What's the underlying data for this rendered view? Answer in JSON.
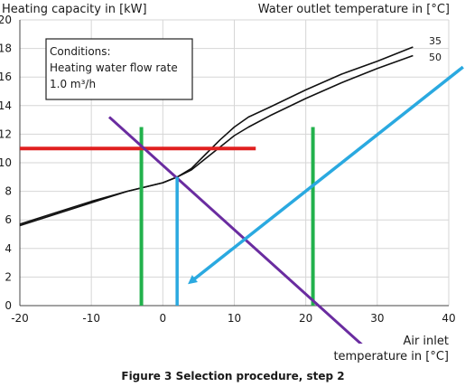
{
  "chart_data": {
    "type": "line",
    "ylabel": "Heating capacity in [kW]",
    "series_group_title": "Water outlet temperature in [°C]",
    "xlabel_line1": "Air inlet",
    "xlabel_line2": "temperature in [°C]",
    "caption": "Figure 3  Selection procedure, step 2",
    "xlim": [
      -20,
      40
    ],
    "ylim": [
      0,
      20
    ],
    "x_ticks": [
      "-20",
      "-10",
      "0",
      "10",
      "20",
      "30",
      "40"
    ],
    "y_ticks": [
      "0",
      "2",
      "4",
      "6",
      "8",
      "10",
      "12",
      "14",
      "16",
      "18",
      "20"
    ],
    "grid": true,
    "conditions": {
      "line1": "Conditions:",
      "line2": "Heating water flow rate",
      "line3": "1.0 m³/h"
    },
    "series": [
      {
        "name": "35",
        "x": [
          -20,
          -15,
          -10,
          -5,
          0,
          2,
          4,
          6,
          8,
          10,
          12,
          15,
          20,
          25,
          30,
          35
        ],
        "y": [
          5.6,
          6.4,
          7.2,
          8.0,
          8.6,
          9.0,
          9.6,
          10.6,
          11.6,
          12.5,
          13.2,
          13.9,
          15.1,
          16.2,
          17.1,
          18.1
        ]
      },
      {
        "name": "50",
        "x": [
          -20,
          -15,
          -10,
          -5,
          0,
          2,
          4,
          6,
          8,
          10,
          12,
          15,
          20,
          25,
          30,
          35
        ],
        "y": [
          5.7,
          6.5,
          7.3,
          8.0,
          8.6,
          9.0,
          9.5,
          10.3,
          11.1,
          11.9,
          12.5,
          13.3,
          14.5,
          15.6,
          16.6,
          17.5
        ]
      }
    ],
    "annotations": {
      "red_line": {
        "x": [
          -20,
          13
        ],
        "y": [
          11,
          11
        ],
        "color": "#e02020"
      },
      "green_lines": [
        {
          "x": [
            -3,
            -3
          ],
          "y": [
            0,
            12.5
          ],
          "color": "#22b14c"
        },
        {
          "x": [
            21,
            21
          ],
          "y": [
            0,
            12.5
          ],
          "color": "#22b14c"
        }
      ],
      "purple_line": {
        "x": [
          -7.5,
          28
        ],
        "y": [
          13.2,
          -2.8
        ],
        "color": "#6a2ca0"
      },
      "blue_vertical": {
        "x": [
          2,
          2
        ],
        "y": [
          9,
          0
        ],
        "color": "#2aa9e0"
      },
      "blue_arrow": {
        "x": [
          42,
          4
        ],
        "y": [
          16.7,
          1.7
        ],
        "color": "#2aa9e0"
      }
    }
  }
}
